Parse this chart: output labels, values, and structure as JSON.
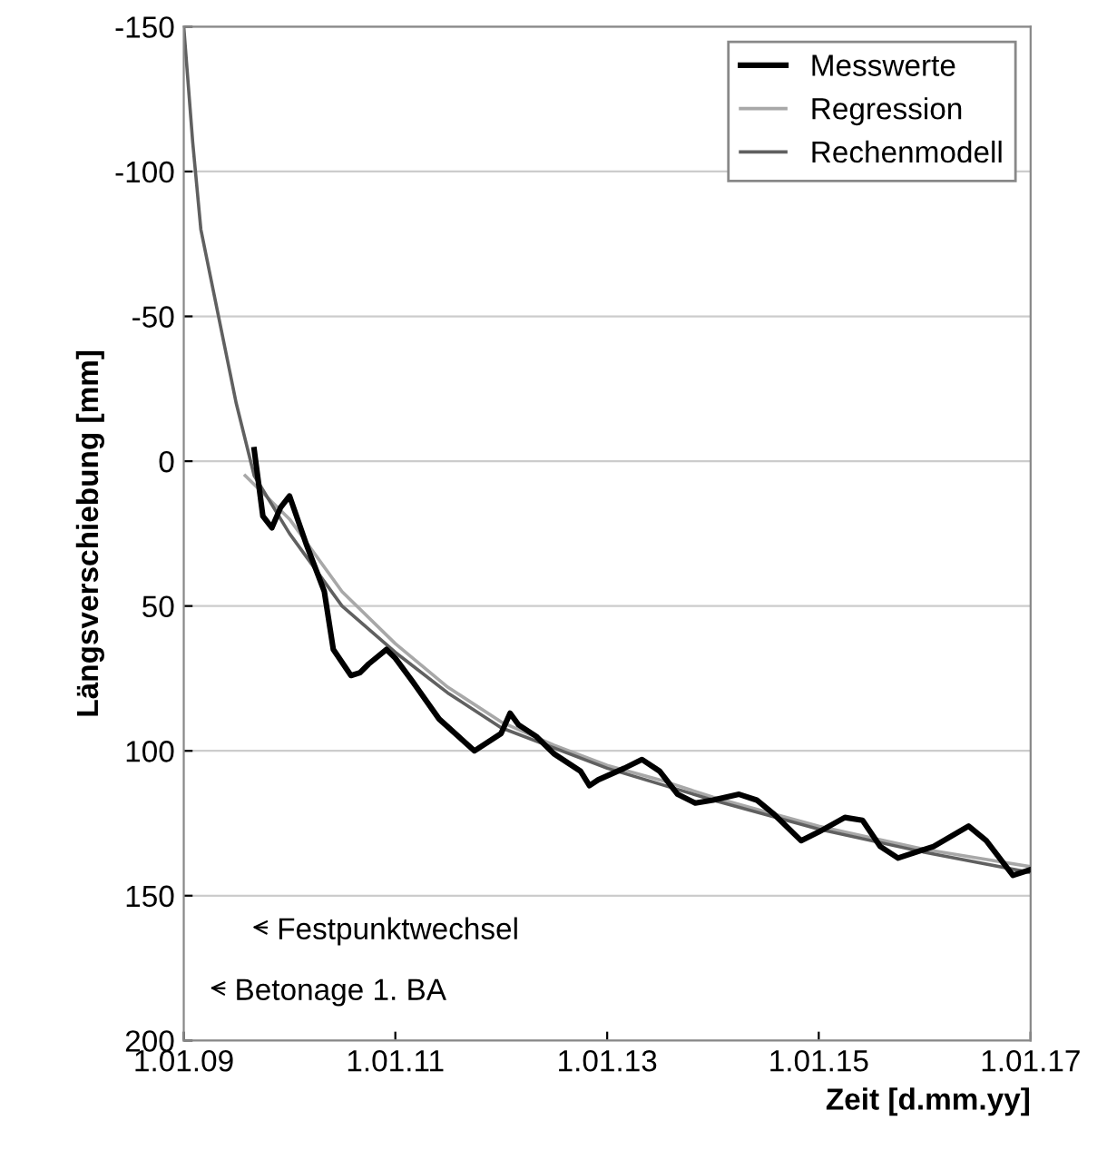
{
  "chart_data": {
    "type": "line",
    "xlabel": "Zeit [d.mm.yy]",
    "ylabel": "Längsverschiebung [mm]",
    "xlim": [
      "2009-01-01",
      "2017-01-01"
    ],
    "xticks": [
      {
        "value": "2009-01-01",
        "label": "1.01.09"
      },
      {
        "value": "2011-01-01",
        "label": "1.01.11"
      },
      {
        "value": "2013-01-01",
        "label": "1.01.13"
      },
      {
        "value": "2015-01-01",
        "label": "1.01.15"
      },
      {
        "value": "2017-01-01",
        "label": "1.01.17"
      }
    ],
    "ylim": [
      200,
      -150
    ],
    "yticks": [
      -150,
      -100,
      -50,
      0,
      50,
      100,
      150,
      200
    ],
    "grid": "y",
    "legend": "top right",
    "series": [
      {
        "name": "Messwerte",
        "color": "#000000",
        "x": [
          "2009-09",
          "2009-10",
          "2009-11",
          "2009-12",
          "2010-01",
          "2010-03",
          "2010-05",
          "2010-06",
          "2010-08",
          "2010-09",
          "2010-10",
          "2010-12",
          "2011-01",
          "2011-03",
          "2011-06",
          "2011-10",
          "2012-01",
          "2012-02",
          "2012-03",
          "2012-05",
          "2012-07",
          "2012-10",
          "2012-11",
          "2012-12",
          "2013-03",
          "2013-05",
          "2013-07",
          "2013-09",
          "2013-11",
          "2014-01",
          "2014-04",
          "2014-06",
          "2014-08",
          "2014-11",
          "2015-01",
          "2015-04",
          "2015-06",
          "2015-08",
          "2015-10",
          "2016-02",
          "2016-06",
          "2016-08",
          "2016-10",
          "2016-11",
          "2017-01"
        ],
        "values": [
          -4,
          19,
          23,
          16,
          12,
          29,
          45,
          65,
          74,
          73,
          70,
          65,
          68,
          76,
          89,
          100,
          94,
          87,
          91,
          95,
          101,
          107,
          112,
          110,
          106,
          103,
          107,
          115,
          118,
          117,
          115,
          117,
          122,
          131,
          128,
          123,
          124,
          133,
          137,
          133,
          126,
          131,
          139,
          143,
          141
        ]
      },
      {
        "name": "Regression",
        "color": "#a8a8a8",
        "x": [
          "2009-08",
          "2010-01",
          "2010-07",
          "2011-01",
          "2011-07",
          "2012-01",
          "2012-07",
          "2013-01",
          "2013-07",
          "2014-01",
          "2014-07",
          "2015-01",
          "2015-07",
          "2016-01",
          "2016-07",
          "2017-01"
        ],
        "values": [
          5,
          20,
          45,
          63,
          78,
          90,
          98,
          105,
          110,
          116,
          121,
          126,
          130,
          134,
          137,
          140
        ]
      },
      {
        "name": "Rechenmodell",
        "color": "#606060",
        "x": [
          "2009-01",
          "2009-02",
          "2009-03",
          "2009-05",
          "2009-07",
          "2009-09",
          "2010-01",
          "2010-07",
          "2011-01",
          "2011-07",
          "2012-01",
          "2013-01",
          "2014-01",
          "2015-01",
          "2016-01",
          "2017-01"
        ],
        "values": [
          -150,
          -110,
          -80,
          -50,
          -20,
          5,
          25,
          50,
          66,
          80,
          92,
          106,
          117,
          127,
          135,
          142
        ]
      }
    ],
    "annotations": [
      "Festpunktwechsel",
      "Betonage 1. BA"
    ]
  }
}
